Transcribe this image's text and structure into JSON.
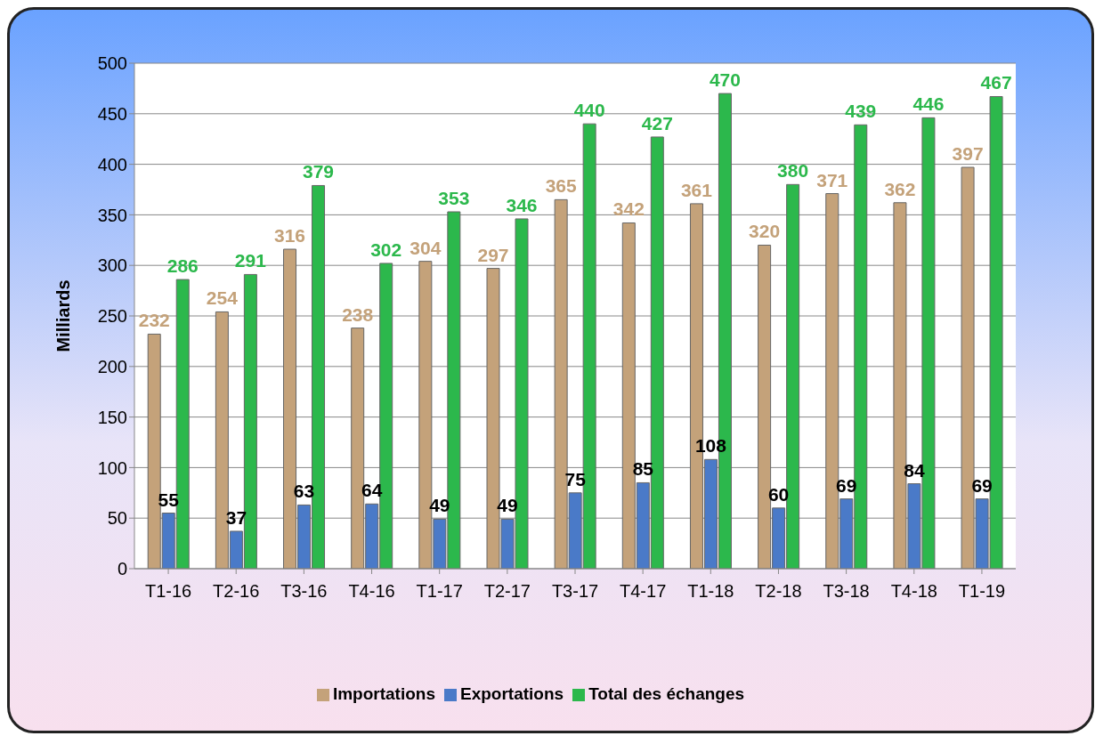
{
  "chart_data": {
    "type": "bar",
    "ylabel": "Milliards",
    "categories": [
      "T1-16",
      "T2-16",
      "T3-16",
      "T4-16",
      "T1-17",
      "T2-17",
      "T3-17",
      "T4-17",
      "T1-18",
      "T2-18",
      "T3-18",
      "T4-18",
      "T1-19"
    ],
    "series": [
      {
        "name": "Importations",
        "color": "#c4a27a",
        "values": [
          232,
          254,
          316,
          238,
          304,
          297,
          365,
          342,
          361,
          320,
          371,
          362,
          397
        ]
      },
      {
        "name": "Exportations",
        "color": "#4a7ac8",
        "values": [
          55,
          37,
          63,
          64,
          49,
          49,
          75,
          85,
          108,
          60,
          69,
          84,
          69
        ]
      },
      {
        "name": "Total des échanges",
        "color": "#2cb84c",
        "values": [
          286,
          291,
          379,
          302,
          353,
          346,
          440,
          427,
          470,
          380,
          439,
          446,
          467
        ]
      }
    ],
    "ylim": [
      0,
      500
    ],
    "yticks": [
      0,
      50,
      100,
      150,
      200,
      250,
      300,
      350,
      400,
      450,
      500
    ],
    "grid": "y",
    "legend": "bottom",
    "data_labels": true
  }
}
